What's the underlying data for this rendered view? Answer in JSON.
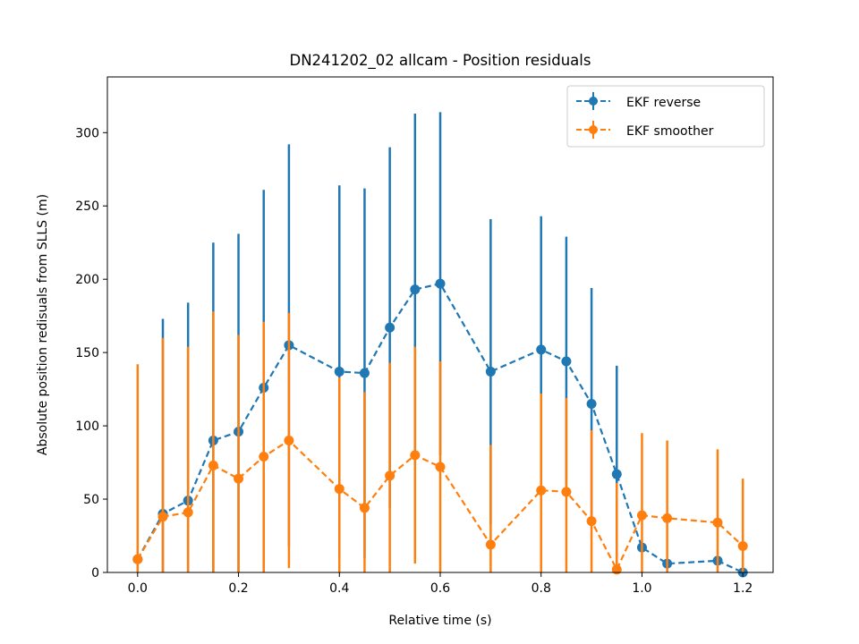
{
  "chart_data": {
    "type": "line",
    "title": "DN241202_02 allcam - Position residuals",
    "xlabel": "Relative time (s)",
    "ylabel": "Absolute position redisuals from SLLS (m)",
    "xlim": [
      -0.06,
      1.26
    ],
    "ylim": [
      0,
      338
    ],
    "xticks": [
      0.0,
      0.2,
      0.4,
      0.6,
      0.8,
      1.0,
      1.2
    ],
    "xtick_labels": [
      "0.0",
      "0.2",
      "0.4",
      "0.6",
      "0.8",
      "1.0",
      "1.2"
    ],
    "yticks": [
      0,
      50,
      100,
      150,
      200,
      250,
      300
    ],
    "ytick_labels": [
      "0",
      "50",
      "100",
      "150",
      "200",
      "250",
      "300"
    ],
    "grid": false,
    "legend_position": "top-right",
    "series": [
      {
        "name": "EKF reverse",
        "color": "#1f77b4",
        "style": "dashed line with circle markers and vertical error bars",
        "x": [
          0.0,
          0.05,
          0.1,
          0.15,
          0.2,
          0.25,
          0.3,
          0.4,
          0.45,
          0.5,
          0.55,
          0.6,
          0.7,
          0.8,
          0.85,
          0.9,
          0.95,
          1.0,
          1.05,
          1.15,
          1.2
        ],
        "y": [
          9,
          40,
          49,
          90,
          96,
          126,
          155,
          137,
          136,
          167,
          193,
          197,
          137,
          152,
          144,
          115,
          67,
          17,
          6,
          8,
          0
        ],
        "y_err": [
          0,
          133,
          135,
          135,
          135,
          135,
          137,
          127,
          126,
          123,
          120,
          117,
          104,
          91,
          85,
          79,
          74,
          0,
          0,
          0,
          0
        ]
      },
      {
        "name": "EKF smoother",
        "color": "#ff7f0e",
        "style": "dashed line with circle markers and vertical error bars",
        "x": [
          0.0,
          0.05,
          0.1,
          0.15,
          0.2,
          0.25,
          0.3,
          0.4,
          0.45,
          0.5,
          0.55,
          0.6,
          0.7,
          0.8,
          0.85,
          0.9,
          0.95,
          1.0,
          1.05,
          1.15,
          1.2
        ],
        "y": [
          9,
          38,
          41,
          73,
          64,
          79,
          90,
          57,
          44,
          66,
          80,
          72,
          19,
          56,
          55,
          35,
          2,
          39,
          37,
          34,
          18
        ],
        "y_err": [
          133,
          122,
          113,
          105,
          98,
          92,
          87,
          76,
          79,
          77,
          74,
          72,
          68,
          66,
          64,
          62,
          59,
          56,
          53,
          50,
          46
        ]
      }
    ]
  }
}
